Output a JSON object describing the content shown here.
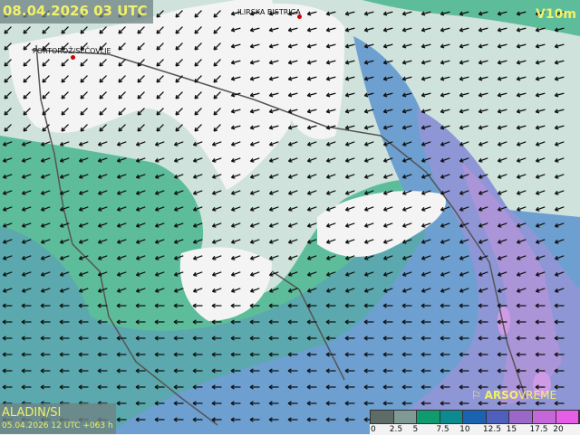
{
  "header": {
    "valid_time": "08.04.2026 03 UTC",
    "parameter": "V10m"
  },
  "places": [
    {
      "name": "ILIRSKA BISTRICA"
    },
    {
      "name": "PORTOROŽ/SEČOVLJE"
    }
  ],
  "model": {
    "name": "ALADIN/SI",
    "run": "05.04.2026 12 UTC +063 h"
  },
  "brand": {
    "icon": "wind-sock-icon",
    "name": "ARSO",
    "suffix": "VREME"
  },
  "legend": {
    "unit_values": [
      "0",
      "2.5",
      "5",
      "7.5",
      "10",
      "12.5",
      "15",
      "17.5",
      "20"
    ],
    "colors": [
      "#5e6b66",
      "#7f9a94",
      "#0e9b6e",
      "#0d8a90",
      "#1a63b0",
      "#4f5fbe",
      "#9b67c8",
      "#c467d8",
      "#e65ee8"
    ]
  }
}
